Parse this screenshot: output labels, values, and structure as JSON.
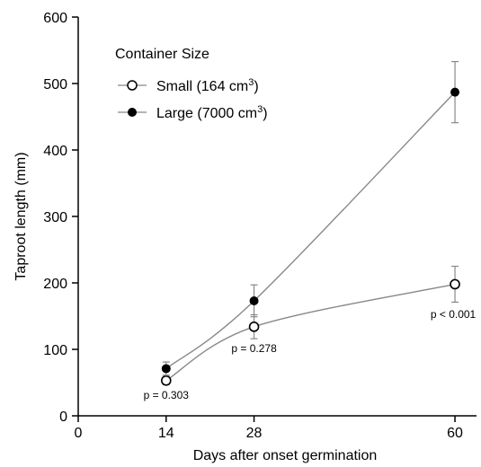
{
  "chart_data": {
    "type": "line",
    "xlabel": "Days after onset germination",
    "ylabel": "Taproot length (mm)",
    "xlim": [
      0,
      63
    ],
    "ylim": [
      0,
      600
    ],
    "x_ticks": [
      0,
      14,
      28,
      60
    ],
    "y_ticks": [
      0,
      100,
      200,
      300,
      400,
      500,
      600
    ],
    "grid": false,
    "legend": {
      "title": "Container Size",
      "placement": "top-left"
    },
    "x": [
      14,
      28,
      60
    ],
    "series": [
      {
        "name_parts": [
          "Small (164 cm",
          "3",
          ")"
        ],
        "marker": "open-circle",
        "values": [
          53,
          134,
          198
        ],
        "error": [
          6,
          18,
          27
        ]
      },
      {
        "name_parts": [
          "Large (7000 cm",
          "3",
          ")"
        ],
        "marker": "filled-circle",
        "values": [
          71,
          173,
          487
        ],
        "error": [
          10,
          24,
          46
        ]
      }
    ],
    "annotations": [
      {
        "text": "p = 0.303",
        "x": 14
      },
      {
        "text": "p = 0.278",
        "x": 28
      },
      {
        "text": "p < 0.001",
        "x": 60
      }
    ],
    "colors": {
      "line": "#888888",
      "marker_edge": "#000000",
      "axis": "#000000"
    }
  }
}
